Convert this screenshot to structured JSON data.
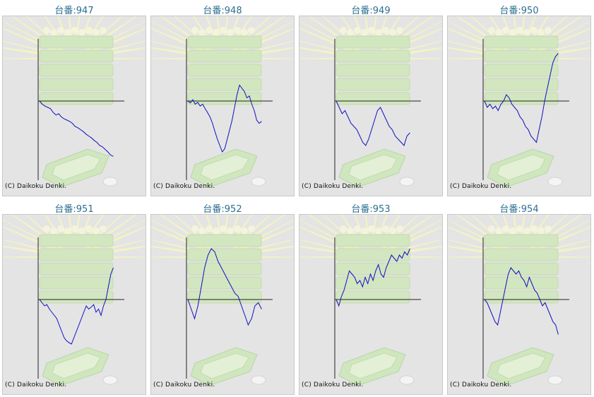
{
  "copyright": "(C) Daikoku Denki.",
  "colors": {
    "title": "#2a6f8f",
    "line": "#1010c0",
    "axis": "#222222",
    "panel": "#e4e4e4"
  },
  "chart_data": [
    {
      "type": "line",
      "title": "台番:947",
      "values": [
        0,
        -5,
        -8,
        -10,
        -12,
        -18,
        -22,
        -20,
        -25,
        -28,
        -30,
        -32,
        -35,
        -40,
        -42,
        -45,
        -48,
        -52,
        -55,
        -58,
        -62,
        -65,
        -70,
        -72,
        -76,
        -80,
        -85,
        -87
      ]
    },
    {
      "type": "line",
      "title": "台番:948",
      "values": [
        0,
        -3,
        2,
        -5,
        -2,
        -8,
        -5,
        -12,
        -18,
        -25,
        -35,
        -48,
        -60,
        -70,
        -80,
        -75,
        -60,
        -45,
        -30,
        -10,
        10,
        25,
        20,
        15,
        5,
        8,
        -5,
        -15,
        -30,
        -35,
        -32
      ]
    },
    {
      "type": "line",
      "title": "台番:949",
      "values": [
        0,
        -10,
        -20,
        -15,
        -25,
        -35,
        -40,
        -45,
        -55,
        -65,
        -70,
        -60,
        -45,
        -30,
        -15,
        -10,
        -20,
        -30,
        -40,
        -45,
        -55,
        -60,
        -65,
        -70,
        -55,
        -50
      ]
    },
    {
      "type": "line",
      "title": "台番:950",
      "values": [
        0,
        -10,
        -5,
        -12,
        -8,
        -15,
        -5,
        0,
        10,
        5,
        -5,
        -10,
        -15,
        -25,
        -30,
        -40,
        -45,
        -55,
        -60,
        -65,
        -45,
        -25,
        0,
        20,
        40,
        60,
        70,
        75
      ]
    },
    {
      "type": "line",
      "title": "台番:951",
      "values": [
        0,
        -5,
        -10,
        -8,
        -15,
        -20,
        -25,
        -30,
        -40,
        -50,
        -60,
        -65,
        -68,
        -70,
        -60,
        -50,
        -40,
        -30,
        -20,
        -10,
        -15,
        -12,
        -8,
        -20,
        -15,
        -25,
        -10,
        0,
        20,
        40,
        50
      ]
    },
    {
      "type": "line",
      "title": "台番:952",
      "values": [
        0,
        -15,
        -30,
        -10,
        20,
        50,
        70,
        80,
        75,
        60,
        50,
        40,
        30,
        20,
        10,
        5,
        -10,
        -25,
        -40,
        -30,
        -10,
        -5,
        -15
      ]
    },
    {
      "type": "line",
      "title": "台番:953",
      "values": [
        0,
        -10,
        5,
        15,
        30,
        45,
        40,
        35,
        25,
        30,
        20,
        35,
        25,
        40,
        30,
        45,
        55,
        40,
        35,
        50,
        60,
        70,
        65,
        60,
        70,
        65,
        75,
        70,
        80
      ]
    },
    {
      "type": "line",
      "title": "台番:954",
      "values": [
        0,
        -5,
        -15,
        -25,
        -35,
        -40,
        -20,
        0,
        20,
        40,
        50,
        45,
        40,
        45,
        35,
        30,
        20,
        35,
        25,
        15,
        10,
        0,
        -10,
        -5,
        -15,
        -25,
        -35,
        -40,
        -55
      ]
    }
  ]
}
